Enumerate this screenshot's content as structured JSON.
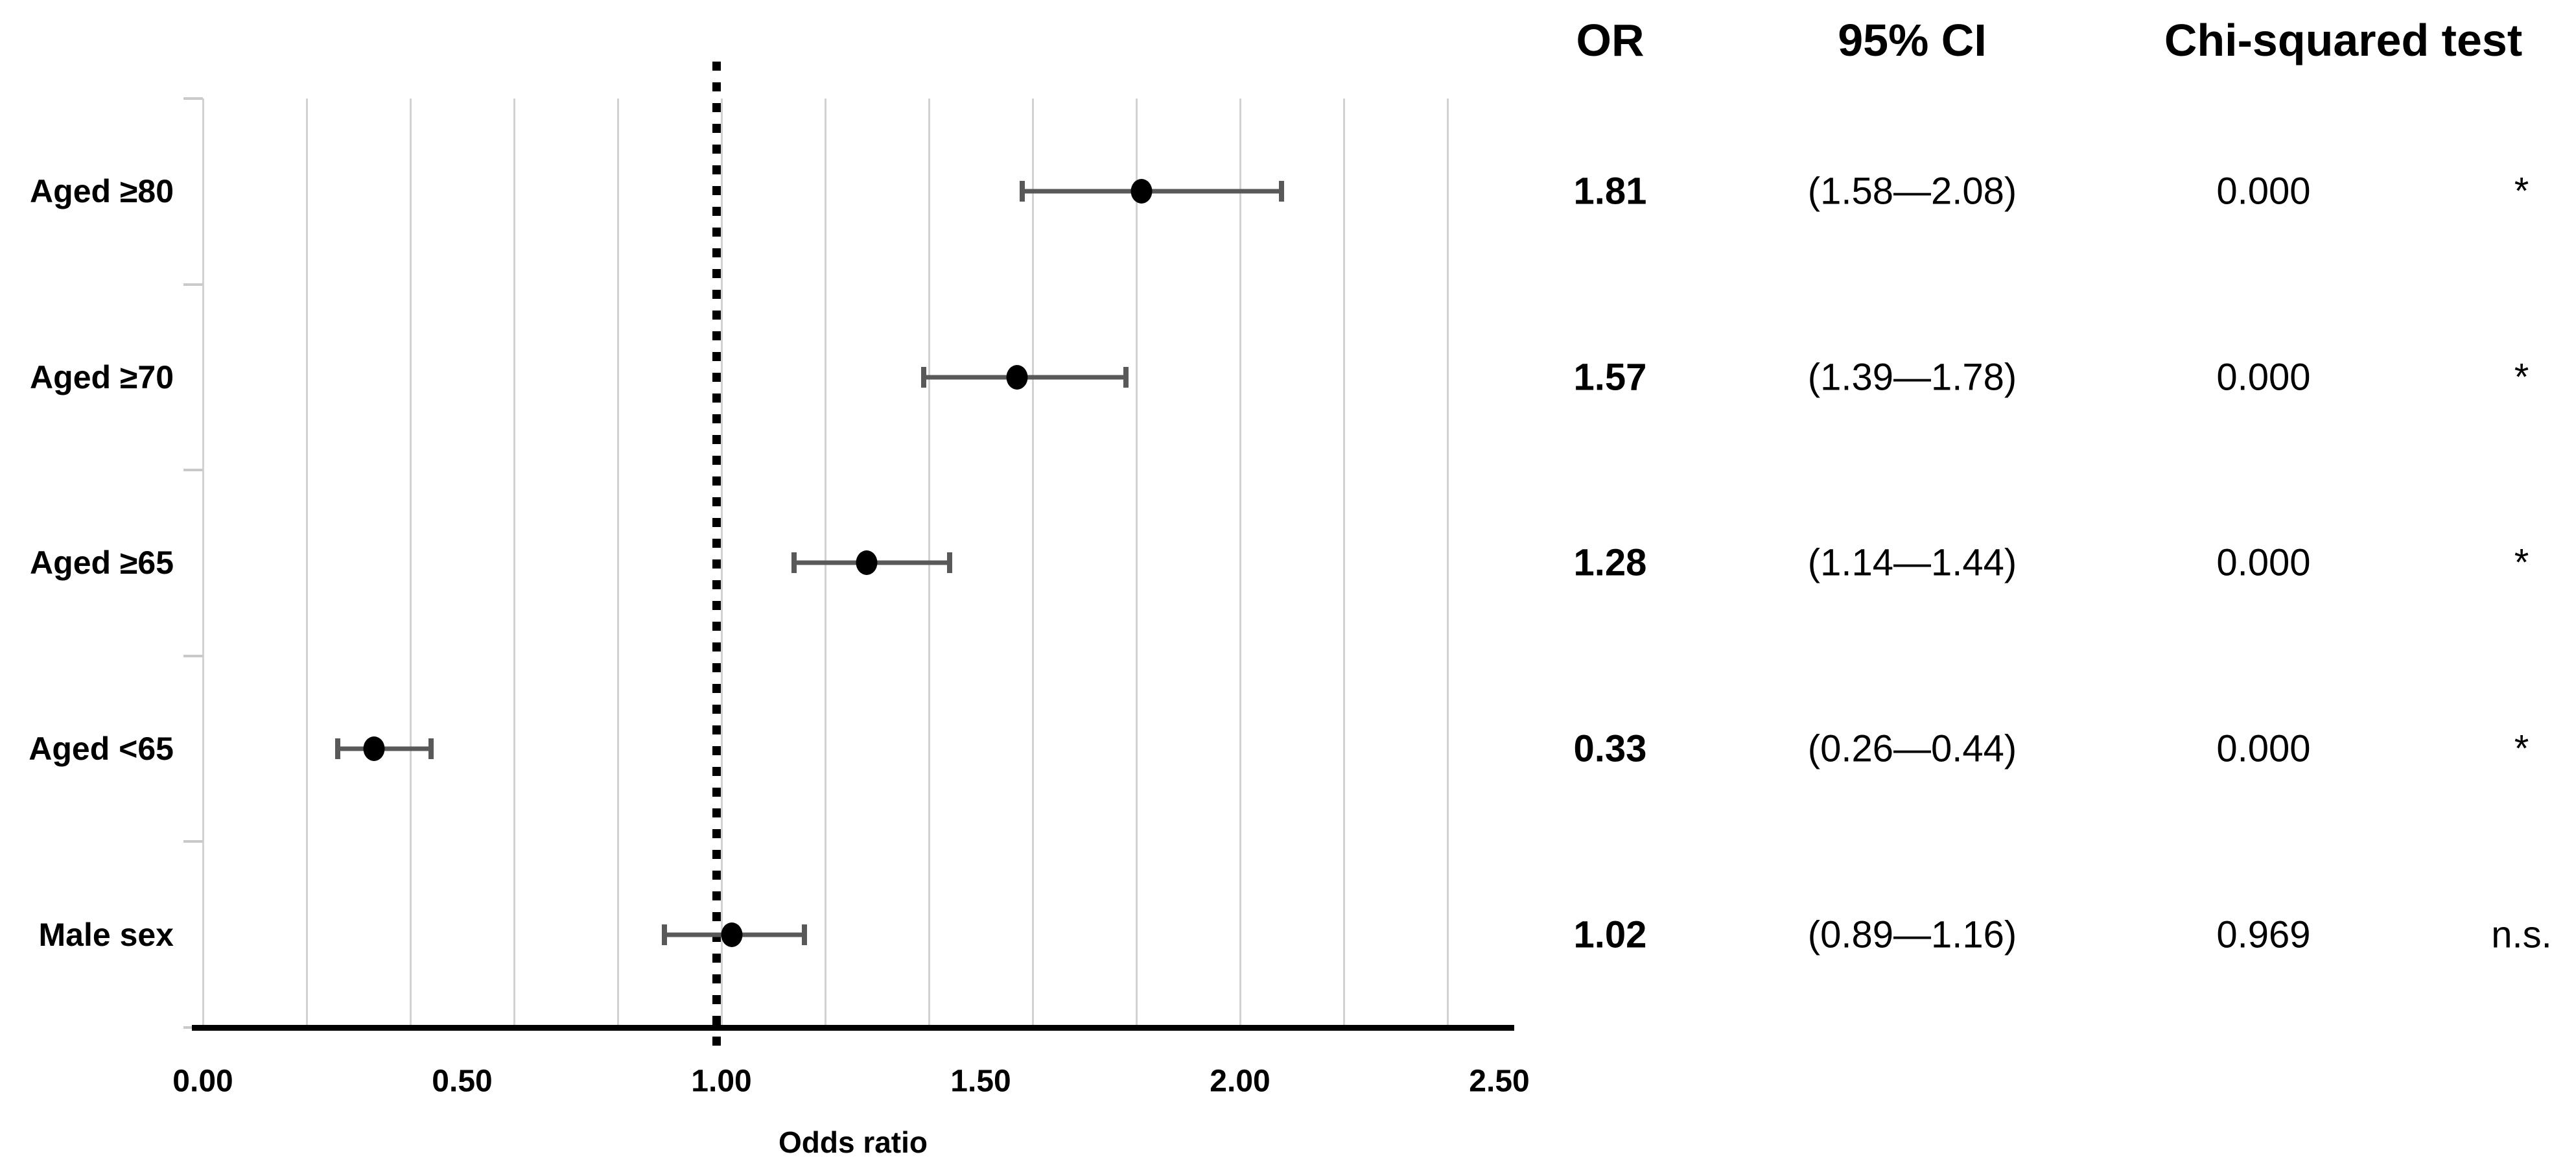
{
  "chart_data": {
    "type": "forest",
    "title": "",
    "xlabel": "Odds ratio",
    "xlim": [
      0,
      2.5
    ],
    "xticks": [
      0,
      0.5,
      1,
      1.5,
      2,
      2.5
    ],
    "xtick_labels": [
      "0.00",
      "0.50",
      "1.00",
      "1.50",
      "2.00",
      "2.50"
    ],
    "gridline_step": 0.2,
    "grid": true,
    "reference_line": 1.0,
    "categories": [
      "Aged ≥80",
      "Aged ≥70",
      "Aged ≥65",
      "Aged <65",
      "Male sex"
    ],
    "series": [
      {
        "name": "Odds ratio",
        "values": [
          1.81,
          1.57,
          1.28,
          0.33,
          1.02
        ],
        "ci_low": [
          1.58,
          1.39,
          1.14,
          0.26,
          0.89
        ],
        "ci_high": [
          2.08,
          1.78,
          1.44,
          0.44,
          1.16
        ]
      }
    ],
    "colors": {
      "gridline": "#d2d2d2",
      "error_bar": "#595959",
      "marker": "#000000",
      "reference_line": "#000000",
      "axis": "#000000"
    }
  },
  "table": {
    "headers": {
      "or": "OR",
      "ci": "95% CI",
      "chi": "Chi-squared test"
    },
    "rows": [
      {
        "or": "1.81",
        "ci": "(1.58—2.08)",
        "p": "0.000",
        "sig": "*"
      },
      {
        "or": "1.57",
        "ci": "(1.39—1.78)",
        "p": "0.000",
        "sig": "*"
      },
      {
        "or": "1.28",
        "ci": "(1.14—1.44)",
        "p": "0.000",
        "sig": "*"
      },
      {
        "or": "0.33",
        "ci": "(0.26—0.44)",
        "p": "0.000",
        "sig": "*"
      },
      {
        "or": "1.02",
        "ci": "(0.89—1.16)",
        "p": "0.969",
        "sig": "n.s."
      }
    ]
  }
}
